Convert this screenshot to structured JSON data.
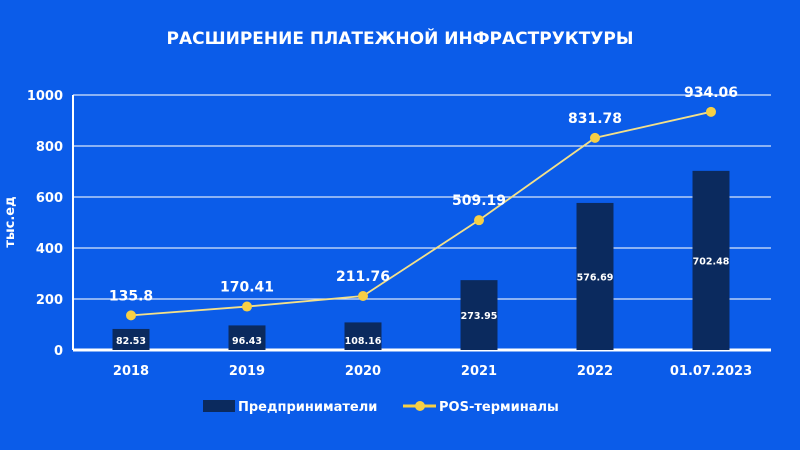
{
  "chart_data": {
    "type": "bar+line",
    "title": "РАСШИРЕНИЕ ПЛАТЕЖНОЙ ИНФРАСТРУКТУРЫ",
    "ylabel": "тыс.ед",
    "xlabel": "",
    "ylim": [
      0,
      1000
    ],
    "yticks": [
      0,
      200,
      400,
      600,
      800,
      1000
    ],
    "grid": true,
    "legend_position": "bottom",
    "categories": [
      "2018",
      "2019",
      "2020",
      "2021",
      "2022",
      "01.07.2023"
    ],
    "series": [
      {
        "name": "Предприниматели",
        "kind": "bar",
        "color": "#0b2a5e",
        "values": [
          82.53,
          96.43,
          108.16,
          273.95,
          576.69,
          702.48
        ],
        "labels": [
          "82.53",
          "96.43",
          "108.16",
          "273.95",
          "576.69",
          "702.48"
        ]
      },
      {
        "name": "POS-терминалы",
        "kind": "line",
        "color": "#f7cf45",
        "values": [
          135.8,
          170.41,
          211.76,
          509.19,
          831.78,
          934.06
        ],
        "labels": [
          "135.8",
          "170.41",
          "211.76",
          "509.19",
          "831.78",
          "934.06"
        ]
      }
    ]
  }
}
